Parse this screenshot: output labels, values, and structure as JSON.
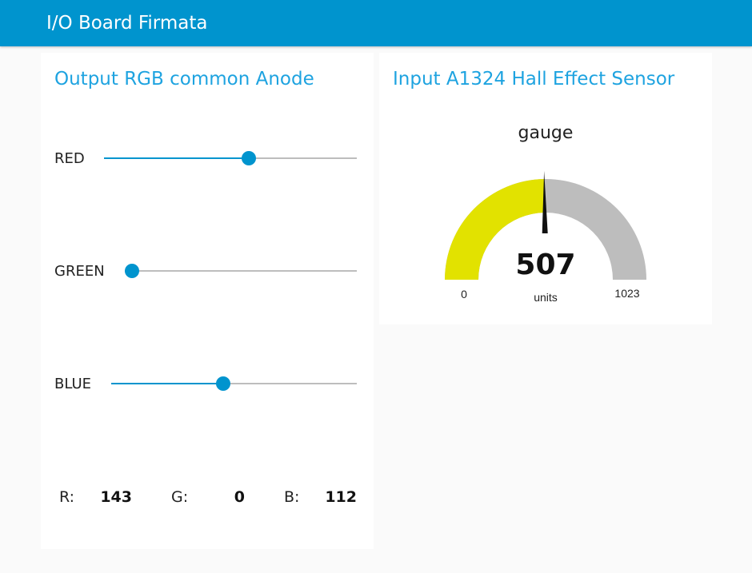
{
  "app": {
    "title": "I/O Board Firmata"
  },
  "output_card": {
    "title": "Output RGB common Anode",
    "sliders": [
      {
        "label": "RED",
        "value": 143,
        "max": 255
      },
      {
        "label": "GREEN",
        "value": 0,
        "max": 255
      },
      {
        "label": "BLUE",
        "value": 112,
        "max": 255
      }
    ],
    "readout": {
      "r_label": "R:",
      "r_value": "143",
      "g_label": "G:",
      "g_value": "0",
      "b_label": "B:",
      "b_value": "112"
    }
  },
  "input_card": {
    "title": "Input A1324 Hall Effect Sensor",
    "gauge": {
      "title": "gauge",
      "value": 507,
      "value_text": "507",
      "units": "units",
      "min": 0,
      "max": 1023,
      "min_text": "0",
      "max_text": "1023",
      "fill_color": "#e2e200",
      "track_color": "#bdbdbd"
    }
  },
  "colors": {
    "accent": "#0094ce",
    "title_text": "#1ea3e0"
  }
}
